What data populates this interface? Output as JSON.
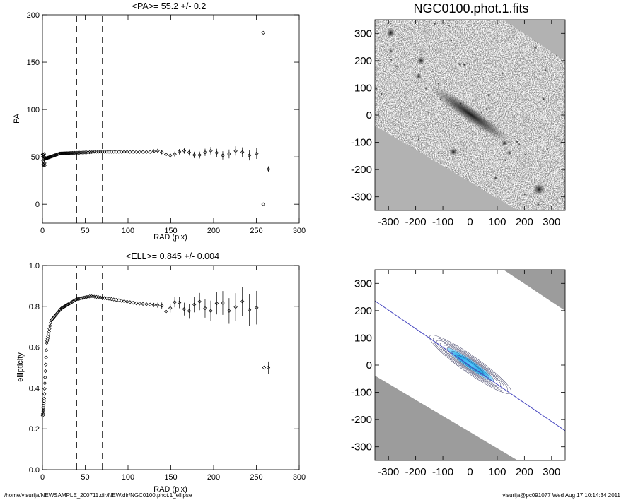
{
  "chart_data": [
    {
      "id": "pa",
      "type": "scatter",
      "title": "<PA>=  55.2 +/-   0.2",
      "xlabel": "RAD (pix)",
      "ylabel": "PA",
      "xlim": [
        0,
        300
      ],
      "ylim": [
        -20,
        200
      ],
      "xticks": [
        "0",
        "50",
        "100",
        "150",
        "200",
        "250",
        "300"
      ],
      "yticks": [
        "0",
        "50",
        "100",
        "150",
        "200"
      ],
      "vlines": [
        40,
        70
      ],
      "outliers": [
        {
          "x": 258,
          "y": 181
        },
        {
          "x": 258,
          "y": 0
        },
        {
          "x": 264,
          "y": 37,
          "err": 3
        }
      ]
    },
    {
      "id": "ell",
      "type": "scatter",
      "title": "<ELL>= 0.845 +/-  0.004",
      "xlabel": "RAD (pix)",
      "ylabel": "ellipticity",
      "xlim": [
        0,
        300
      ],
      "ylim": [
        0.0,
        1.0
      ],
      "xticks": [
        "0",
        "50",
        "100",
        "150",
        "200",
        "250",
        "300"
      ],
      "yticks": [
        "0.0",
        "0.2",
        "0.4",
        "0.6",
        "0.8",
        "1.0"
      ],
      "vlines": [
        40,
        70
      ],
      "outliers": [
        {
          "x": 259,
          "y": 0.5
        },
        {
          "x": 264,
          "y": 0.5,
          "err": 0.03
        }
      ]
    },
    {
      "id": "img",
      "type": "heatmap",
      "title": "NGC0100.phot.1.fits",
      "xlim": [
        -350,
        350
      ],
      "ylim": [
        -350,
        350
      ],
      "xticks": [
        "-300",
        "-200",
        "-100",
        "0",
        "100",
        "200",
        "300"
      ],
      "yticks": [
        "300",
        "200",
        "100",
        "0",
        "-100",
        "-200",
        "-300"
      ]
    },
    {
      "id": "model",
      "type": "heatmap",
      "title": "",
      "xlim": [
        -350,
        350
      ],
      "ylim": [
        -350,
        350
      ],
      "xticks": [
        "-300",
        "-200",
        "-100",
        "0",
        "100",
        "200",
        "300"
      ],
      "yticks": [
        "300",
        "200",
        "100",
        "0",
        "-100",
        "-200",
        "-300"
      ]
    }
  ],
  "footer": {
    "path": "/home/visurija/NEWSAMPLE_200711.dir/NEW.dir/NGC0100.phot.1_ellipse",
    "stamp": "visurija@pc091077  Wed Aug 17 10:14:34 2011"
  }
}
